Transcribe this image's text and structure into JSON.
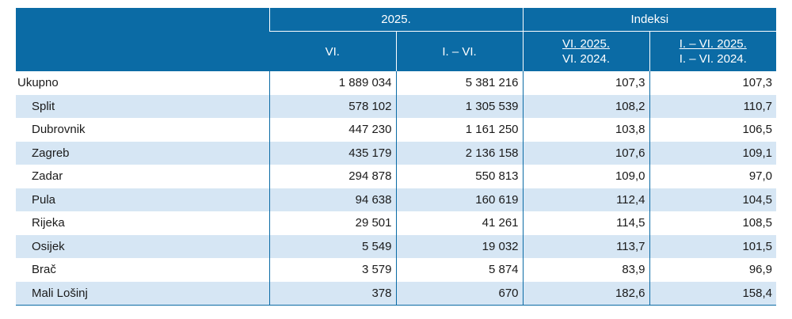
{
  "header": {
    "group_year": "2025.",
    "group_index": "Indeksi",
    "col_month": "VI.",
    "col_period": "I. – VI.",
    "idx1_numerator": "VI. 2025.",
    "idx1_denominator": "VI. 2024.",
    "idx2_numerator": "I. – VI. 2025.",
    "idx2_denominator": "I. – VI. 2024."
  },
  "rows": [
    {
      "name": "Ukupno",
      "month": "1 889 034",
      "period": "5 381 216",
      "idx_month": "107,3",
      "idx_period": "107,3"
    },
    {
      "name": "Split",
      "month": "578 102",
      "period": "1 305 539",
      "idx_month": "108,2",
      "idx_period": "110,7"
    },
    {
      "name": "Dubrovnik",
      "month": "447 230",
      "period": "1 161 250",
      "idx_month": "103,8",
      "idx_period": "106,5"
    },
    {
      "name": "Zagreb",
      "month": "435 179",
      "period": "2 136 158",
      "idx_month": "107,6",
      "idx_period": "109,1"
    },
    {
      "name": "Zadar",
      "month": "294 878",
      "period": "550 813",
      "idx_month": "109,0",
      "idx_period": "97,0"
    },
    {
      "name": "Pula",
      "month": "94 638",
      "period": "160 619",
      "idx_month": "112,4",
      "idx_period": "104,5"
    },
    {
      "name": "Rijeka",
      "month": "29 501",
      "period": "41 261",
      "idx_month": "114,5",
      "idx_period": "108,5"
    },
    {
      "name": "Osijek",
      "month": "5 549",
      "period": "19 032",
      "idx_month": "113,7",
      "idx_period": "101,5"
    },
    {
      "name": "Brač",
      "month": "3 579",
      "period": "5 874",
      "idx_month": "83,9",
      "idx_period": "96,9"
    },
    {
      "name": "Mali Lošinj",
      "month": "378",
      "period": "670",
      "idx_month": "182,6",
      "idx_period": "158,4"
    }
  ],
  "colors": {
    "header_bg": "#0b6ba5",
    "row_shade": "#d6e6f4"
  }
}
